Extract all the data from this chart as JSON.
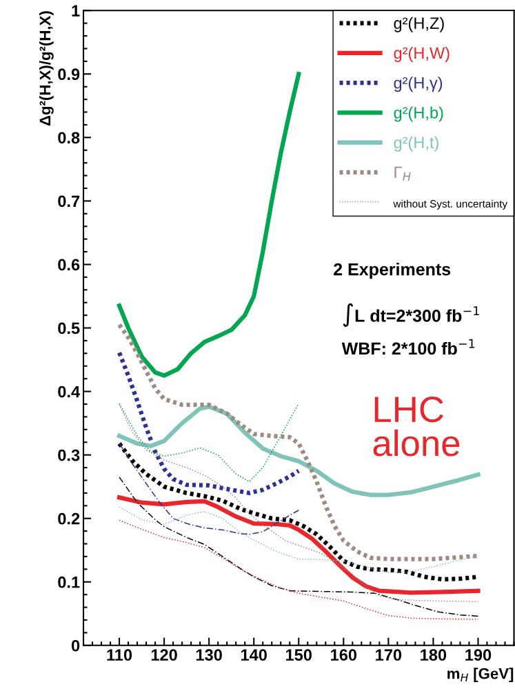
{
  "chart_data": {
    "type": "line",
    "xlabel": "m$_{H}$ [GeV]",
    "ylabel": "Δg²(H,X)/g²(H,X)",
    "xlim": [
      102,
      198
    ],
    "ylim": [
      0,
      1
    ],
    "xticks": [
      {
        "value": 102,
        "label": null
      },
      {
        "value": 104,
        "label": null
      },
      {
        "value": 106,
        "label": null
      },
      {
        "value": 108,
        "label": null
      },
      110,
      {
        "value": 112,
        "label": null
      },
      {
        "value": 114,
        "label": null
      },
      {
        "value": 116,
        "label": null
      },
      {
        "value": 118,
        "label": null
      },
      120,
      {
        "value": 122,
        "label": null
      },
      {
        "value": 124,
        "label": null
      },
      {
        "value": 126,
        "label": null
      },
      {
        "value": 128,
        "label": null
      },
      130,
      {
        "value": 132,
        "label": null
      },
      {
        "value": 134,
        "label": null
      },
      {
        "value": 136,
        "label": null
      },
      {
        "value": 138,
        "label": null
      },
      140,
      {
        "value": 142,
        "label": null
      },
      {
        "value": 144,
        "label": null
      },
      {
        "value": 146,
        "label": null
      },
      {
        "value": 148,
        "label": null
      },
      150,
      {
        "value": 152,
        "label": null
      },
      {
        "value": 154,
        "label": null
      },
      {
        "value": 156,
        "label": null
      },
      {
        "value": 158,
        "label": null
      },
      160,
      {
        "value": 162,
        "label": null
      },
      {
        "value": 164,
        "label": null
      },
      {
        "value": 166,
        "label": null
      },
      {
        "value": 168,
        "label": null
      },
      170,
      {
        "value": 172,
        "label": null
      },
      {
        "value": 174,
        "label": null
      },
      {
        "value": 176,
        "label": null
      },
      {
        "value": 178,
        "label": null
      },
      180,
      {
        "value": 182,
        "label": null
      },
      {
        "value": 184,
        "label": null
      },
      {
        "value": 186,
        "label": null
      },
      {
        "value": 188,
        "label": null
      },
      190,
      {
        "value": 192,
        "label": null
      },
      {
        "value": 194,
        "label": null
      },
      {
        "value": 196,
        "label": null
      },
      {
        "value": 198,
        "label": null
      }
    ],
    "yticks": [
      0,
      {
        "value": 0.02,
        "label": null
      },
      {
        "value": 0.04,
        "label": null
      },
      {
        "value": 0.06,
        "label": null
      },
      {
        "value": 0.08,
        "label": null
      },
      0.1,
      {
        "value": 0.12,
        "label": null
      },
      {
        "value": 0.14,
        "label": null
      },
      {
        "value": 0.16,
        "label": null
      },
      {
        "value": 0.18,
        "label": null
      },
      0.2,
      {
        "value": 0.22,
        "label": null
      },
      {
        "value": 0.24,
        "label": null
      },
      {
        "value": 0.26,
        "label": null
      },
      {
        "value": 0.28,
        "label": null
      },
      0.3,
      {
        "value": 0.32,
        "label": null
      },
      {
        "value": 0.34,
        "label": null
      },
      {
        "value": 0.36,
        "label": null
      },
      {
        "value": 0.38,
        "label": null
      },
      0.4,
      {
        "value": 0.42,
        "label": null
      },
      {
        "value": 0.44,
        "label": null
      },
      {
        "value": 0.46,
        "label": null
      },
      {
        "value": 0.48,
        "label": null
      },
      0.5,
      {
        "value": 0.52,
        "label": null
      },
      {
        "value": 0.54,
        "label": null
      },
      {
        "value": 0.56,
        "label": null
      },
      {
        "value": 0.58,
        "label": null
      },
      0.6,
      {
        "value": 0.62,
        "label": null
      },
      {
        "value": 0.64,
        "label": null
      },
      {
        "value": 0.66,
        "label": null
      },
      {
        "value": 0.68,
        "label": null
      },
      0.7,
      {
        "value": 0.72,
        "label": null
      },
      {
        "value": 0.74,
        "label": null
      },
      {
        "value": 0.76,
        "label": null
      },
      {
        "value": 0.78,
        "label": null
      },
      0.8,
      {
        "value": 0.82,
        "label": null
      },
      {
        "value": 0.84,
        "label": null
      },
      {
        "value": 0.86,
        "label": null
      },
      {
        "value": 0.88,
        "label": null
      },
      0.9,
      {
        "value": 0.92,
        "label": null
      },
      {
        "value": 0.94,
        "label": null
      },
      {
        "value": 0.96,
        "label": null
      },
      {
        "value": 0.98,
        "label": null
      },
      1
    ],
    "grid": false,
    "legend": "top right",
    "series": [
      {
        "name": "g²(H,Z)",
        "color": "#000000",
        "line_style": "dotted",
        "x": [
          110,
          113,
          116,
          120,
          125,
          129,
          133,
          137,
          140,
          144,
          148,
          151,
          154,
          157,
          160,
          163,
          166,
          170,
          174,
          178,
          182,
          186,
          190
        ],
        "values": [
          0.318,
          0.29,
          0.27,
          0.25,
          0.24,
          0.235,
          0.228,
          0.215,
          0.208,
          0.2,
          0.197,
          0.188,
          0.175,
          0.155,
          0.133,
          0.124,
          0.12,
          0.119,
          0.116,
          0.108,
          0.104,
          0.105,
          0.108
        ]
      },
      {
        "name": "g²(H,W)",
        "color": "#e8262b",
        "line_style": "solid",
        "x": [
          110,
          115,
          120,
          125,
          129,
          132,
          136,
          140,
          145,
          148,
          150,
          153,
          156,
          159,
          162,
          165,
          168,
          175,
          182,
          190
        ],
        "values": [
          0.233,
          0.225,
          0.222,
          0.226,
          0.227,
          0.218,
          0.203,
          0.192,
          0.191,
          0.189,
          0.182,
          0.168,
          0.148,
          0.127,
          0.107,
          0.093,
          0.086,
          0.083,
          0.084,
          0.086
        ]
      },
      {
        "name": "g²(H,γ)",
        "color": "#2e3192",
        "line_style": "dotted",
        "x": [
          110,
          112,
          114,
          116,
          118,
          120,
          122,
          125,
          130,
          135,
          139,
          142,
          145,
          148,
          150
        ],
        "values": [
          0.461,
          0.425,
          0.385,
          0.343,
          0.305,
          0.278,
          0.262,
          0.253,
          0.252,
          0.245,
          0.24,
          0.245,
          0.255,
          0.266,
          0.275
        ]
      },
      {
        "name": "g²(H,b)",
        "color": "#00a650",
        "line_style": "solid",
        "x": [
          110,
          112,
          115,
          118,
          120,
          123,
          126,
          129,
          132,
          135,
          138,
          140,
          142,
          144,
          146,
          148,
          150
        ],
        "values": [
          0.535,
          0.5,
          0.455,
          0.43,
          0.425,
          0.435,
          0.46,
          0.478,
          0.487,
          0.497,
          0.52,
          0.55,
          0.62,
          0.7,
          0.775,
          0.84,
          0.9
        ]
      },
      {
        "name": "g²(H,t)",
        "color": "#80c4b7",
        "line_style": "solid",
        "x": [
          110,
          114,
          117,
          120,
          124,
          128,
          130,
          134,
          138,
          142,
          146,
          150,
          154,
          158,
          162,
          166,
          170,
          175,
          180,
          185,
          190
        ],
        "values": [
          0.33,
          0.318,
          0.314,
          0.322,
          0.35,
          0.373,
          0.376,
          0.365,
          0.335,
          0.31,
          0.298,
          0.29,
          0.275,
          0.255,
          0.242,
          0.237,
          0.237,
          0.241,
          0.25,
          0.259,
          0.269
        ]
      },
      {
        "name": "Γ$_{H}$",
        "color": "#9e8a80",
        "line_style": "dotted",
        "x": [
          110,
          112,
          114,
          116,
          118,
          120,
          124,
          130,
          134,
          137,
          140,
          144,
          148,
          150,
          152,
          154,
          156,
          158,
          160,
          163,
          166,
          170,
          180,
          190
        ],
        "values": [
          0.505,
          0.485,
          0.46,
          0.432,
          0.405,
          0.388,
          0.379,
          0.379,
          0.365,
          0.348,
          0.333,
          0.33,
          0.328,
          0.318,
          0.29,
          0.258,
          0.22,
          0.188,
          0.165,
          0.148,
          0.138,
          0.136,
          0.136,
          0.141
        ]
      },
      {
        "color": "#000000",
        "line_style": "dashed",
        "x": [
          110,
          114,
          118,
          120,
          125,
          129,
          133,
          137,
          140,
          144,
          148,
          155,
          162,
          167,
          172,
          176,
          181,
          186,
          190
        ],
        "values": [
          0.265,
          0.225,
          0.198,
          0.187,
          0.17,
          0.159,
          0.14,
          0.121,
          0.108,
          0.094,
          0.086,
          0.085,
          0.084,
          0.082,
          0.072,
          0.063,
          0.053,
          0.048,
          0.046
        ]
      },
      {
        "color": "#e8262b",
        "line_style": "dotted",
        "x": [
          110,
          115,
          120,
          125,
          129,
          133,
          137,
          140,
          145,
          150,
          155,
          160,
          165,
          170,
          175,
          180,
          190
        ],
        "values": [
          0.197,
          0.183,
          0.17,
          0.162,
          0.154,
          0.138,
          0.12,
          0.109,
          0.093,
          0.082,
          0.076,
          0.07,
          0.058,
          0.047,
          0.043,
          0.042,
          0.041
        ]
      },
      {
        "color": "#2e3192",
        "line_style": "dashed",
        "x": [
          110,
          113,
          116,
          119,
          122,
          125,
          129,
          133,
          137,
          139,
          142,
          145,
          148,
          150
        ],
        "values": [
          0.318,
          0.285,
          0.255,
          0.225,
          0.2,
          0.192,
          0.185,
          0.182,
          0.176,
          0.175,
          0.179,
          0.192,
          0.205,
          0.213
        ]
      },
      {
        "color": "#00a650",
        "line_style": "dotted",
        "x": [
          110,
          114,
          117,
          120,
          124,
          128,
          132,
          136,
          139,
          142,
          146,
          150
        ],
        "values": [
          0.381,
          0.33,
          0.305,
          0.298,
          0.303,
          0.311,
          0.3,
          0.27,
          0.258,
          0.28,
          0.33,
          0.381
        ]
      },
      {
        "color": "#80c4b7",
        "line_style": "dotted",
        "x": [
          110,
          115,
          120,
          125,
          129,
          133,
          137,
          140,
          145,
          150,
          155,
          160,
          165,
          170,
          174,
          180,
          185,
          190
        ],
        "values": [
          0.218,
          0.198,
          0.191,
          0.205,
          0.211,
          0.2,
          0.178,
          0.166,
          0.148,
          0.136,
          0.135,
          0.133,
          0.124,
          0.115,
          0.115,
          0.124,
          0.133,
          0.141
        ]
      },
      {
        "color": "#9e8a80",
        "line_style": "dotted",
        "x": [
          110,
          113,
          116,
          120,
          125,
          129,
          133,
          136,
          139,
          143,
          147,
          151,
          155,
          158,
          162,
          165,
          168,
          172,
          180,
          190
        ],
        "values": [
          0.379,
          0.335,
          0.308,
          0.292,
          0.28,
          0.268,
          0.25,
          0.232,
          0.207,
          0.185,
          0.165,
          0.155,
          0.145,
          0.132,
          0.112,
          0.092,
          0.078,
          0.072,
          0.07,
          0.069
        ]
      }
    ],
    "annotations": [
      "without Syst. uncertainty",
      "2 Experiments",
      "∫L dt=2*300 fb$^{−1}$",
      "WBF: 2*100 fb$^{−1}$",
      "LHC\nalone"
    ]
  }
}
